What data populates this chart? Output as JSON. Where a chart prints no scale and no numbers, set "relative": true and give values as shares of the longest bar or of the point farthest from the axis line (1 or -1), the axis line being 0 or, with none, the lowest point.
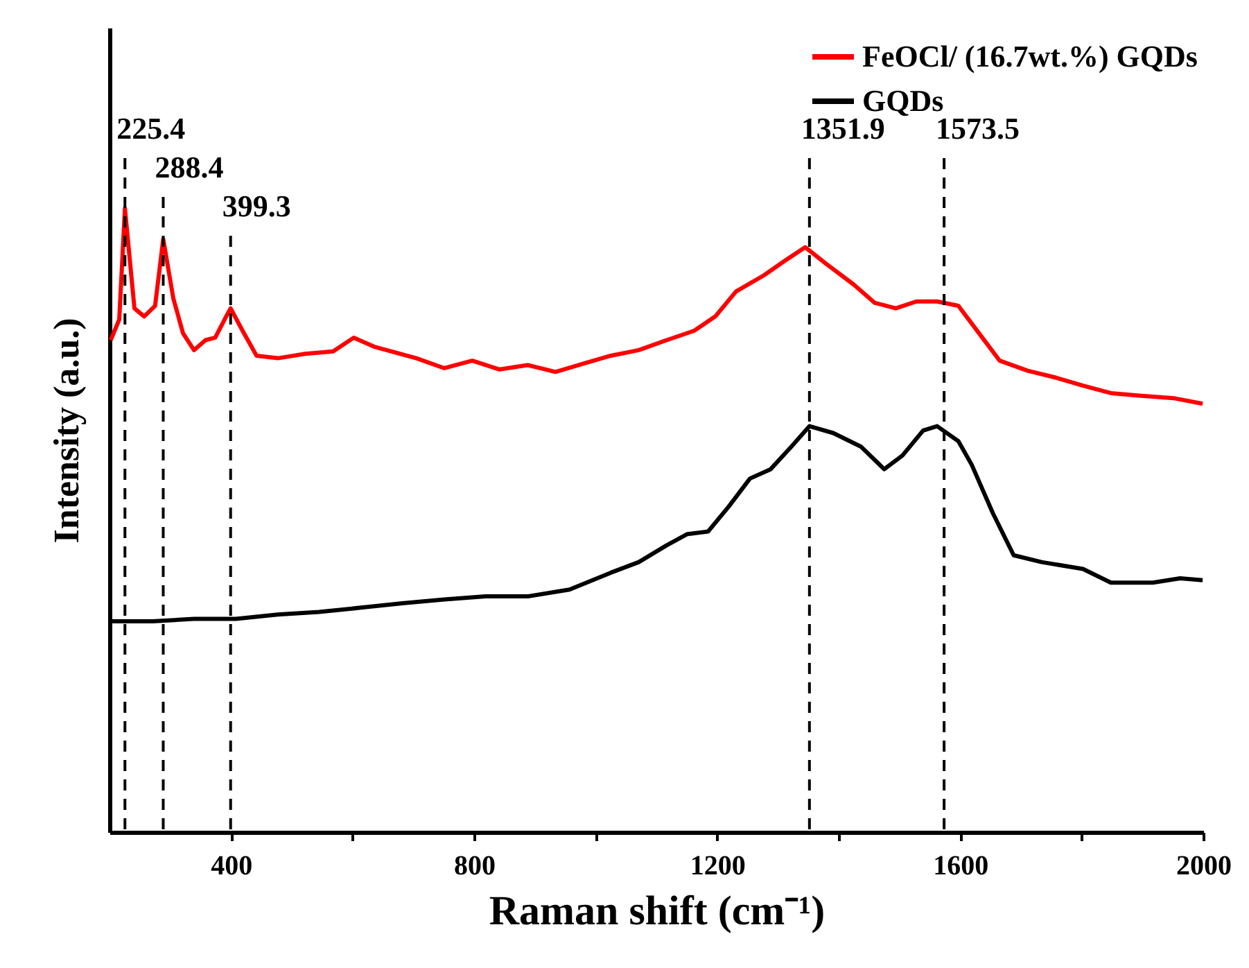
{
  "chart_data": {
    "type": "line",
    "relative": true,
    "xlabel": "Raman shift (cm⁻¹)",
    "ylabel": "Intensity (a.u.)",
    "xlim": [
      200,
      2000
    ],
    "xticks": [
      400,
      {
        "value": 600,
        "label": null
      },
      800,
      {
        "value": 1000,
        "label": null
      },
      1200,
      {
        "value": 1400,
        "label": null
      },
      1600,
      {
        "value": 1800,
        "label": null
      },
      2000
    ],
    "legend": "top right",
    "line_style": "solid",
    "marker": "none",
    "grid": false,
    "series": [
      {
        "name": "FeOCl/ (16.7wt.%) GQDs",
        "color": "#ff0000",
        "x": [
          202,
          216,
          225.4,
          241,
          257,
          275,
          288.4,
          305,
          321,
          339,
          358,
          374,
          392,
          399.3,
          419,
          442,
          477,
          522,
          568,
          602,
          637,
          705,
          751,
          797,
          842,
          888,
          934,
          979,
          1025,
          1071,
          1117,
          1162,
          1197,
          1231,
          1277,
          1311,
          1345,
          1380,
          1425,
          1459,
          1494,
          1528,
          1562,
          1597,
          1631,
          1665,
          1711,
          1757,
          1802,
          1848,
          1894,
          1951,
          1999
        ],
        "values": [
          0.789,
          0.822,
          1.0,
          0.84,
          0.827,
          0.844,
          0.951,
          0.856,
          0.8,
          0.773,
          0.789,
          0.793,
          0.827,
          0.84,
          0.804,
          0.764,
          0.76,
          0.767,
          0.771,
          0.793,
          0.778,
          0.76,
          0.744,
          0.756,
          0.742,
          0.749,
          0.738,
          0.751,
          0.764,
          0.773,
          0.789,
          0.804,
          0.827,
          0.867,
          0.893,
          0.916,
          0.938,
          0.911,
          0.878,
          0.849,
          0.84,
          0.851,
          0.851,
          0.844,
          0.8,
          0.756,
          0.74,
          0.729,
          0.716,
          0.704,
          0.7,
          0.696,
          0.687
        ]
      },
      {
        "name": "GQDs",
        "color": "#000000",
        "x": [
          202,
          271,
          339,
          408,
          477,
          545,
          614,
          682,
          751,
          819,
          888,
          957,
          1025,
          1071,
          1117,
          1151,
          1185,
          1219,
          1254,
          1288,
          1322,
          1352,
          1391,
          1437,
          1475,
          1505,
          1539,
          1562,
          1597,
          1619,
          1654,
          1688,
          1734,
          1802,
          1848,
          1917,
          1962,
          1999
        ],
        "values": [
          0.338,
          0.338,
          0.342,
          0.342,
          0.349,
          0.353,
          0.36,
          0.367,
          0.373,
          0.378,
          0.378,
          0.389,
          0.416,
          0.433,
          0.46,
          0.478,
          0.482,
          0.522,
          0.567,
          0.582,
          0.618,
          0.651,
          0.64,
          0.618,
          0.582,
          0.604,
          0.644,
          0.651,
          0.627,
          0.589,
          0.511,
          0.444,
          0.433,
          0.422,
          0.4,
          0.4,
          0.407,
          0.404
        ]
      }
    ],
    "ref_lines": [
      {
        "axis": "x",
        "value": 225.4,
        "label": "225.4",
        "color": "#000000",
        "line_style": "dashed"
      },
      {
        "axis": "x",
        "value": 288.4,
        "label": "288.4",
        "color": "#000000",
        "line_style": "dashed"
      },
      {
        "axis": "x",
        "value": 399.3,
        "label": "399.3",
        "color": "#000000",
        "line_style": "dashed"
      },
      {
        "axis": "x",
        "value": 1351.9,
        "label": "1351.9",
        "color": "#000000",
        "line_style": "dashed"
      },
      {
        "axis": "x",
        "value": 1573.5,
        "label": "1573.5",
        "color": "#000000",
        "line_style": "dashed"
      }
    ]
  }
}
